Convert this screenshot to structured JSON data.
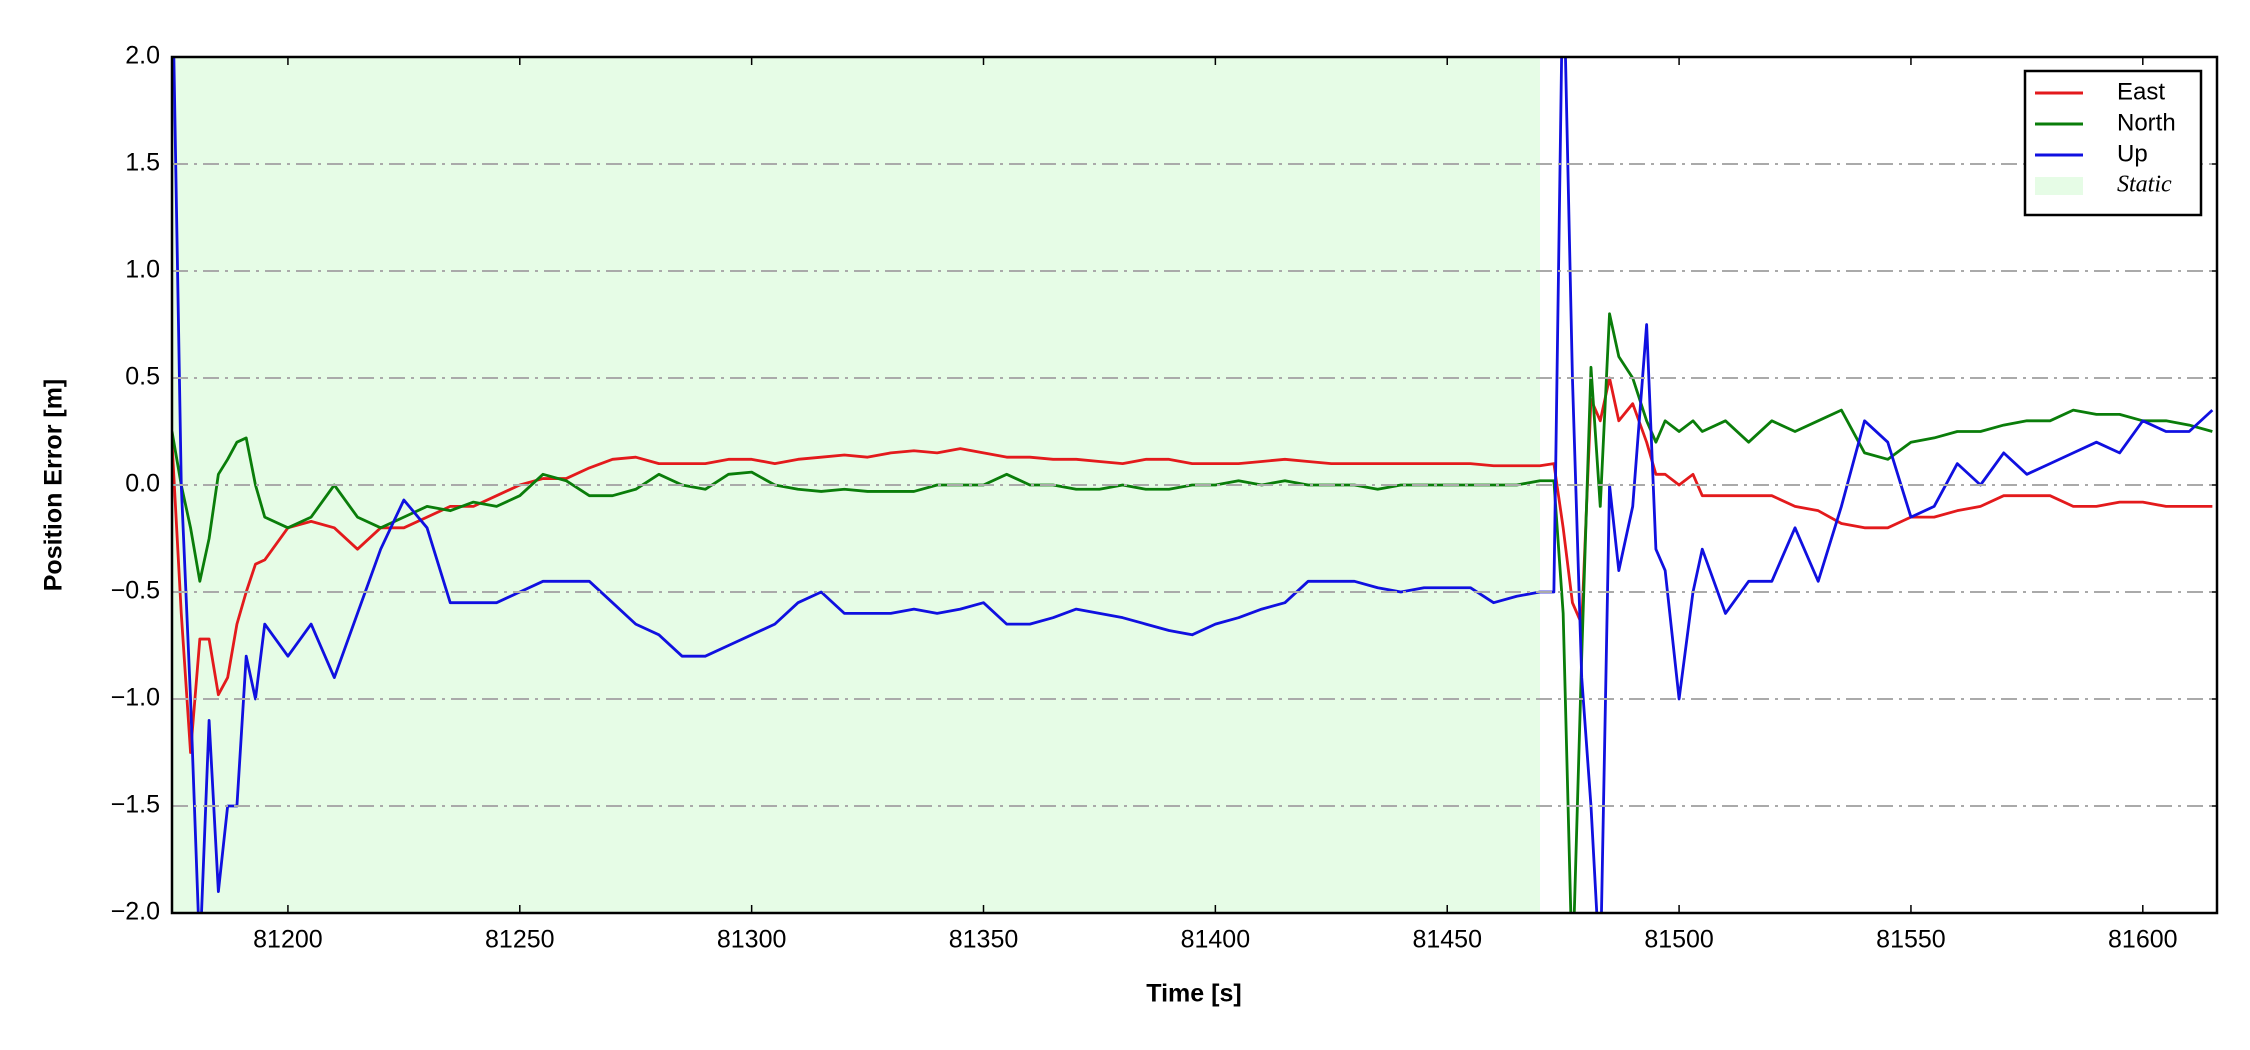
{
  "chart_data": {
    "type": "line",
    "xlabel": "Time [s]",
    "ylabel": "Position Error [m]",
    "x": [
      81175,
      81177,
      81179,
      81181,
      81183,
      81185,
      81187,
      81189,
      81191,
      81193,
      81195,
      81200,
      81205,
      81210,
      81215,
      81220,
      81225,
      81230,
      81235,
      81240,
      81245,
      81250,
      81255,
      81260,
      81265,
      81270,
      81275,
      81280,
      81285,
      81290,
      81295,
      81300,
      81305,
      81310,
      81315,
      81320,
      81325,
      81330,
      81335,
      81340,
      81345,
      81350,
      81355,
      81360,
      81365,
      81370,
      81375,
      81380,
      81385,
      81390,
      81395,
      81400,
      81405,
      81410,
      81415,
      81420,
      81425,
      81430,
      81435,
      81440,
      81445,
      81450,
      81455,
      81460,
      81465,
      81470,
      81473,
      81475,
      81477,
      81479,
      81481,
      81483,
      81485,
      81487,
      81490,
      81493,
      81495,
      81497,
      81500,
      81503,
      81505,
      81510,
      81515,
      81520,
      81525,
      81530,
      81535,
      81540,
      81545,
      81550,
      81555,
      81560,
      81565,
      81570,
      81575,
      81580,
      81585,
      81590,
      81595,
      81600,
      81605,
      81610,
      81615
    ],
    "series": [
      {
        "name": "East",
        "color": "#e31a1c",
        "values": [
          0.2,
          -0.6,
          -1.25,
          -0.72,
          -0.72,
          -0.98,
          -0.9,
          -0.65,
          -0.5,
          -0.37,
          -0.35,
          -0.2,
          -0.17,
          -0.2,
          -0.3,
          -0.2,
          -0.2,
          -0.15,
          -0.1,
          -0.1,
          -0.05,
          0.0,
          0.03,
          0.03,
          0.08,
          0.12,
          0.13,
          0.1,
          0.1,
          0.1,
          0.12,
          0.12,
          0.1,
          0.12,
          0.13,
          0.14,
          0.13,
          0.15,
          0.16,
          0.15,
          0.17,
          0.15,
          0.13,
          0.13,
          0.12,
          0.12,
          0.11,
          0.1,
          0.12,
          0.12,
          0.1,
          0.1,
          0.1,
          0.11,
          0.12,
          0.11,
          0.1,
          0.1,
          0.1,
          0.1,
          0.1,
          0.1,
          0.1,
          0.09,
          0.09,
          0.09,
          0.1,
          -0.2,
          -0.55,
          -0.65,
          0.4,
          0.3,
          0.5,
          0.3,
          0.38,
          0.2,
          0.05,
          0.05,
          0.0,
          0.05,
          -0.05,
          -0.05,
          -0.05,
          -0.05,
          -0.1,
          -0.12,
          -0.18,
          -0.2,
          -0.2,
          -0.15,
          -0.15,
          -0.12,
          -0.1,
          -0.05,
          -0.05,
          -0.05,
          -0.1,
          -0.1,
          -0.08,
          -0.08,
          -0.1,
          -0.1,
          -0.1
        ]
      },
      {
        "name": "North",
        "color": "#0a7d0a",
        "values": [
          0.25,
          0.0,
          -0.2,
          -0.45,
          -0.25,
          0.05,
          0.12,
          0.2,
          0.22,
          0.0,
          -0.15,
          -0.2,
          -0.15,
          0.0,
          -0.15,
          -0.2,
          -0.15,
          -0.1,
          -0.12,
          -0.08,
          -0.1,
          -0.05,
          0.05,
          0.02,
          -0.05,
          -0.05,
          -0.02,
          0.05,
          0.0,
          -0.02,
          0.05,
          0.06,
          0.0,
          -0.02,
          -0.03,
          -0.02,
          -0.03,
          -0.03,
          -0.03,
          0.0,
          0.0,
          0.0,
          0.05,
          0.0,
          0.0,
          -0.02,
          -0.02,
          0.0,
          -0.02,
          -0.02,
          0.0,
          0.0,
          0.02,
          0.0,
          0.02,
          0.0,
          0.0,
          0.0,
          -0.02,
          0.0,
          0.0,
          0.0,
          0.0,
          0.0,
          0.0,
          0.02,
          0.02,
          -0.6,
          -2.3,
          -0.8,
          0.55,
          -0.1,
          0.8,
          0.6,
          0.5,
          0.3,
          0.2,
          0.3,
          0.25,
          0.3,
          0.25,
          0.3,
          0.2,
          0.3,
          0.25,
          0.3,
          0.35,
          0.15,
          0.12,
          0.2,
          0.22,
          0.25,
          0.25,
          0.28,
          0.3,
          0.3,
          0.35,
          0.33,
          0.33,
          0.3,
          0.3,
          0.28,
          0.25
        ]
      },
      {
        "name": "Up",
        "color": "#1010e0",
        "values": [
          2.5,
          0.0,
          -1.0,
          -2.2,
          -1.1,
          -1.9,
          -1.5,
          -1.5,
          -0.8,
          -1.0,
          -0.65,
          -0.8,
          -0.65,
          -0.9,
          -0.6,
          -0.3,
          -0.07,
          -0.2,
          -0.55,
          -0.55,
          -0.55,
          -0.5,
          -0.45,
          -0.45,
          -0.45,
          -0.55,
          -0.65,
          -0.7,
          -0.8,
          -0.8,
          -0.75,
          -0.7,
          -0.65,
          -0.55,
          -0.5,
          -0.6,
          -0.6,
          -0.6,
          -0.58,
          -0.6,
          -0.58,
          -0.55,
          -0.65,
          -0.65,
          -0.62,
          -0.58,
          -0.6,
          -0.62,
          -0.65,
          -0.68,
          -0.7,
          -0.65,
          -0.62,
          -0.58,
          -0.55,
          -0.45,
          -0.45,
          -0.45,
          -0.48,
          -0.5,
          -0.48,
          -0.48,
          -0.48,
          -0.55,
          -0.52,
          -0.5,
          -0.5,
          2.5,
          0.5,
          -0.9,
          -1.5,
          -2.3,
          0.0,
          -0.4,
          -0.1,
          0.75,
          -0.3,
          -0.4,
          -1.0,
          -0.5,
          -0.3,
          -0.6,
          -0.45,
          -0.45,
          -0.2,
          -0.45,
          -0.1,
          0.3,
          0.2,
          -0.15,
          -0.1,
          0.1,
          0.0,
          0.15,
          0.05,
          0.1,
          0.15,
          0.2,
          0.15,
          0.3,
          0.25,
          0.25,
          0.35
        ]
      }
    ],
    "shaded_region": {
      "name": "Static",
      "color": "#e6fce6",
      "x": [
        81175,
        81470
      ]
    },
    "xlim": [
      81175,
      81616
    ],
    "ylim": [
      -2,
      2
    ],
    "xticks": [
      81200,
      81250,
      81300,
      81350,
      81400,
      81450,
      81500,
      81550,
      81600
    ],
    "yticks": [
      {
        "value": -2,
        "label": "−2.0"
      },
      {
        "value": -1.5,
        "label": "−1.5"
      },
      {
        "value": -1,
        "label": "−1.0"
      },
      {
        "value": -0.5,
        "label": "−0.5"
      },
      {
        "value": 0,
        "label": "0.0"
      },
      0.5,
      {
        "value": 1,
        "label": "1.0"
      },
      1.5,
      {
        "value": 2,
        "label": "2.0"
      }
    ],
    "grid": "y",
    "legend": "upper right"
  }
}
